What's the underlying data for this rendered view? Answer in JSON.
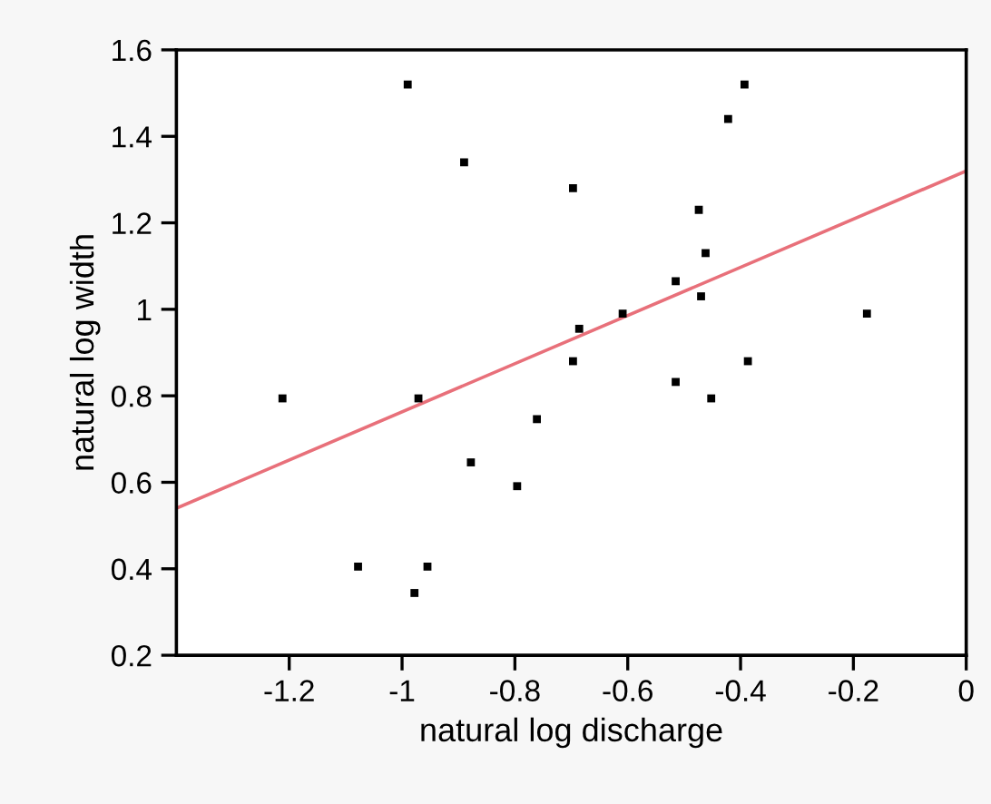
{
  "chart_data": {
    "type": "scatter",
    "xlabel": "natural log discharge",
    "ylabel": "natural log width",
    "xlim": [
      -1.4,
      0
    ],
    "ylim": [
      0.2,
      1.6
    ],
    "xticks": [
      {
        "value": -1.2,
        "label": "-1.2"
      },
      {
        "value": -1,
        "label": "-1"
      },
      {
        "value": -0.8,
        "label": "-0.8"
      },
      {
        "value": -0.6,
        "label": "-0.6"
      },
      {
        "value": -0.4,
        "label": "-0.4"
      },
      {
        "value": -0.2,
        "label": "-0.2"
      },
      {
        "value": 0,
        "label": "0"
      }
    ],
    "yticks": [
      {
        "value": 0.2,
        "label": "0.2"
      },
      {
        "value": 0.4,
        "label": "0.4"
      },
      {
        "value": 0.6,
        "label": "0.6"
      },
      {
        "value": 0.8,
        "label": "0.8"
      },
      {
        "value": 1,
        "label": "1"
      },
      {
        "value": 1.2,
        "label": "1.2"
      },
      {
        "value": 1.4,
        "label": "1.4"
      },
      {
        "value": 1.6,
        "label": "1.6"
      }
    ],
    "grid": false,
    "legend": false,
    "series": [
      {
        "marker": "square",
        "color": "#000000",
        "x": [
          -0.99,
          -0.393,
          -0.422,
          -0.89,
          -0.697,
          -0.474,
          -0.462,
          -0.515,
          -0.47,
          -0.609,
          -0.176,
          -0.686,
          -0.697,
          -0.387,
          -0.515,
          -0.452,
          -1.212,
          -0.971,
          -0.761,
          -0.878,
          -0.796,
          -1.078,
          -0.955,
          -0.978
        ],
        "values": [
          1.52,
          1.52,
          1.44,
          1.34,
          1.28,
          1.23,
          1.13,
          1.065,
          1.03,
          0.99,
          0.99,
          0.955,
          0.88,
          0.88,
          0.832,
          0.794,
          0.794,
          0.794,
          0.746,
          0.646,
          0.591,
          0.405,
          0.405,
          0.344
        ]
      },
      {
        "type": "line",
        "color": "#e8707a",
        "x": [
          -1.4,
          0
        ],
        "values": [
          0.54,
          1.32
        ]
      }
    ]
  }
}
